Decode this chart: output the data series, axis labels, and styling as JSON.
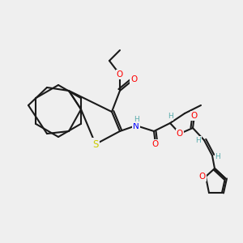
{
  "background_color": "#efefef",
  "bond_color": "#1a1a1a",
  "atom_colors": {
    "O": "#ff0000",
    "N": "#0000ff",
    "S": "#cccc00",
    "H": "#5aacac",
    "C": "#1a1a1a"
  },
  "font_size_atom": 7.5,
  "font_size_small": 5.5
}
